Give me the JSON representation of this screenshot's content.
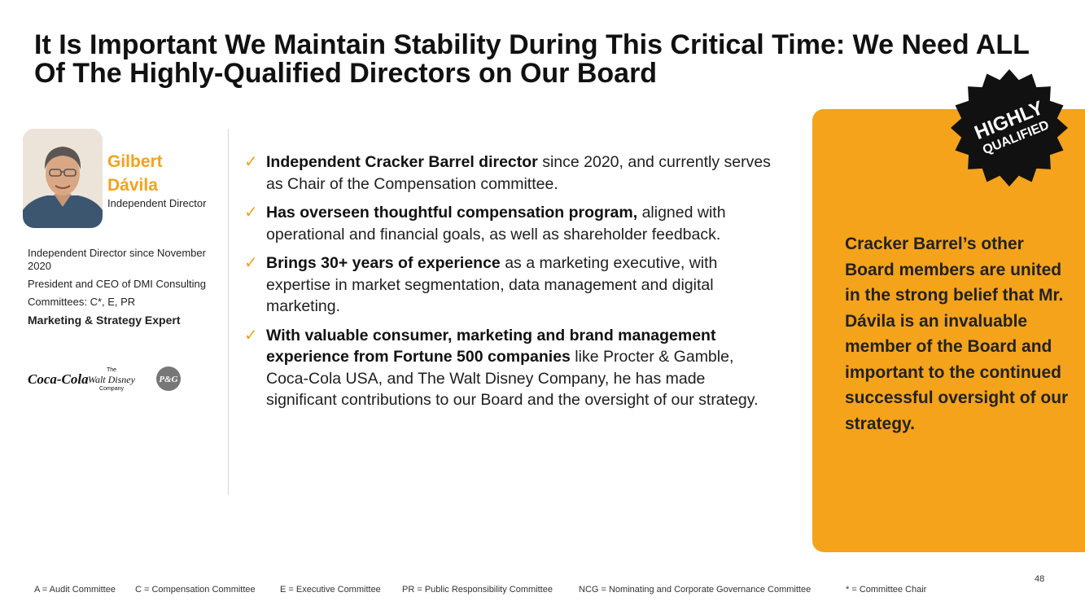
{
  "title": "It Is Important We Maintain Stability During This Critical Time: We Need ALL Of The Highly-Qualified Directors on Our Board",
  "profile": {
    "first_name": "Gilbert",
    "last_name": "Dávila",
    "role": "Independent Director",
    "facts": [
      "Independent Director since November 2020",
      "President and CEO of DMI Consulting",
      "Committees: C*, E, PR"
    ],
    "expertise": "Marketing & Strategy Expert",
    "logos": {
      "coca_cola": "Coca-Cola",
      "disney_the": "The",
      "disney_name": "Walt Disney",
      "disney_company": "Company",
      "pg": "P&G"
    }
  },
  "bullets": [
    {
      "bold": "Independent Cracker Barrel director",
      "text": " since 2020, and currently serves as Chair of the Compensation committee."
    },
    {
      "bold": "Has overseen thoughtful compensation program,",
      "text": " aligned with operational and financial goals, as well as shareholder feedback."
    },
    {
      "bold": "Brings 30+ years of experience",
      "text": " as a marketing executive, with expertise in market segmentation, data management and digital marketing."
    },
    {
      "bold": "With valuable consumer, marketing and brand management experience from Fortune 500 companies",
      "text": " like Procter & Gamble, Coca-Cola USA, and The Walt Disney Company, he has made significant contributions to our Board and the oversight of our strategy."
    }
  ],
  "check_glyph": "✓",
  "badge": {
    "line1": "HIGHLY",
    "line2": "QUALIFIED"
  },
  "panel_text": "Cracker Barrel’s other Board members are united in the strong belief that Mr. Dávila is an invaluable member of the Board and important to the continued successful oversight of our strategy.",
  "footer": [
    "A = Audit Committee",
    "C = Compensation Committee",
    "E = Executive Committee",
    "PR = Public Responsibility Committee",
    "NCG = Nominating and Corporate Governance Committee",
    "* = Committee Chair"
  ],
  "page_number": "48",
  "colors": {
    "accent": "#f5a31b",
    "name": "#f2a31d",
    "badge": "#111111"
  }
}
